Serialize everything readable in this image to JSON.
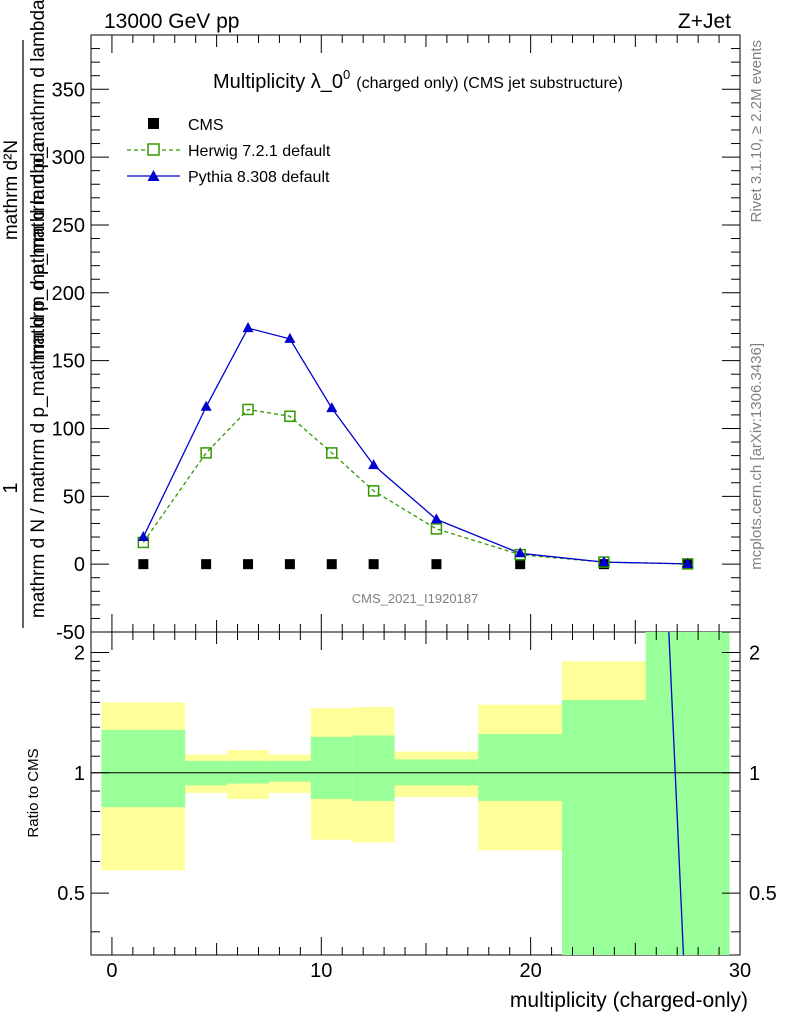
{
  "header": {
    "left": "13000 GeV pp",
    "right": "Z+Jet"
  },
  "side": {
    "rivet": "Rivet 3.1.10, ≥ 2.2M events",
    "mcplots": "mcplots.cern.ch [arXiv:1306.3436]"
  },
  "watermark": "CMS_2021_I1920187",
  "colors": {
    "herwig": "#339900",
    "pythia": "#0000cc",
    "band_inner": "#99ff99",
    "band_outer": "#ffff99"
  },
  "chart_data": {
    "type": "line",
    "title_main": "Multiplicity λ_0",
    "title_sup": "0",
    "title_sub": "(charged only) (CMS jet substructure)",
    "ylabel_top": "1",
    "ylabel_denominator": "mathrm d N / mathrm d p_mathrm d p_mathrm d lambda",
    "ylabel_numerator_a": "mathrm d²N",
    "ylabel_numerator_b": "mathrm d p_mathrm d p_mathrm d lambda",
    "xlabel": "multiplicity (charged-only)",
    "ratio_ylabel": "Ratio to CMS",
    "xlim": [
      -1,
      30
    ],
    "ylim": [
      -50,
      390
    ],
    "yticks": [
      -50,
      0,
      50,
      100,
      150,
      200,
      250,
      300,
      350
    ],
    "xticks": [
      0,
      10,
      20,
      30
    ],
    "ratio_ylim": [
      0.35,
      2.25
    ],
    "ratio_yticks": [
      0.5,
      1,
      2
    ],
    "legend_position": "top-left",
    "series": [
      {
        "name": "CMS",
        "marker": "square",
        "x": [
          1.5,
          4.5,
          6.5,
          8.5,
          10.5,
          12.5,
          15.5,
          19.5,
          23.5,
          27.5
        ],
        "values": [
          0,
          0,
          0,
          0,
          0,
          0,
          0,
          0,
          0,
          0
        ]
      },
      {
        "name": "Herwig 7.2.1 default",
        "marker": "open-square",
        "x": [
          1.5,
          4.5,
          6.5,
          8.5,
          10.5,
          12.5,
          15.5,
          19.5,
          23.5,
          27.5
        ],
        "values": [
          16,
          82,
          114,
          109,
          82,
          54,
          26,
          7,
          1.5,
          0.2
        ]
      },
      {
        "name": "Pythia 8.308 default",
        "marker": "triangle",
        "x": [
          1.5,
          4.5,
          6.5,
          8.5,
          10.5,
          12.5,
          15.5,
          19.5,
          23.5,
          27.5
        ],
        "values": [
          20,
          116,
          174,
          166,
          115,
          73,
          33,
          8,
          1.5,
          0.2
        ]
      }
    ],
    "ratio_bands": [
      {
        "x": [
          -0.5,
          3.5
        ],
        "inner": [
          0.82,
          1.28
        ],
        "outer": [
          0.57,
          1.5
        ]
      },
      {
        "x": [
          3.5,
          5.5
        ],
        "inner": [
          0.93,
          1.07
        ],
        "outer": [
          0.89,
          1.11
        ]
      },
      {
        "x": [
          5.5,
          7.5
        ],
        "inner": [
          0.94,
          1.07
        ],
        "outer": [
          0.86,
          1.14
        ]
      },
      {
        "x": [
          7.5,
          9.5
        ],
        "inner": [
          0.95,
          1.07
        ],
        "outer": [
          0.89,
          1.11
        ]
      },
      {
        "x": [
          9.5,
          11.5
        ],
        "inner": [
          0.86,
          1.23
        ],
        "outer": [
          0.68,
          1.45
        ]
      },
      {
        "x": [
          11.5,
          13.5
        ],
        "inner": [
          0.85,
          1.24
        ],
        "outer": [
          0.67,
          1.46
        ]
      },
      {
        "x": [
          13.5,
          17.5
        ],
        "inner": [
          0.93,
          1.08
        ],
        "outer": [
          0.87,
          1.13
        ]
      },
      {
        "x": [
          17.5,
          21.5
        ],
        "inner": [
          0.85,
          1.25
        ],
        "outer": [
          0.64,
          1.48
        ]
      },
      {
        "x": [
          21.5,
          25.5
        ],
        "inner": [
          0.35,
          1.52
        ],
        "outer": [
          0.35,
          1.9
        ]
      },
      {
        "x": [
          25.5,
          29.5
        ],
        "inner": [
          0.35,
          2.25
        ],
        "outer": [
          0.35,
          2.25
        ]
      }
    ],
    "ratio_line": {
      "x": [
        26.6,
        27.3
      ],
      "values": [
        2.25,
        0.35
      ]
    }
  }
}
